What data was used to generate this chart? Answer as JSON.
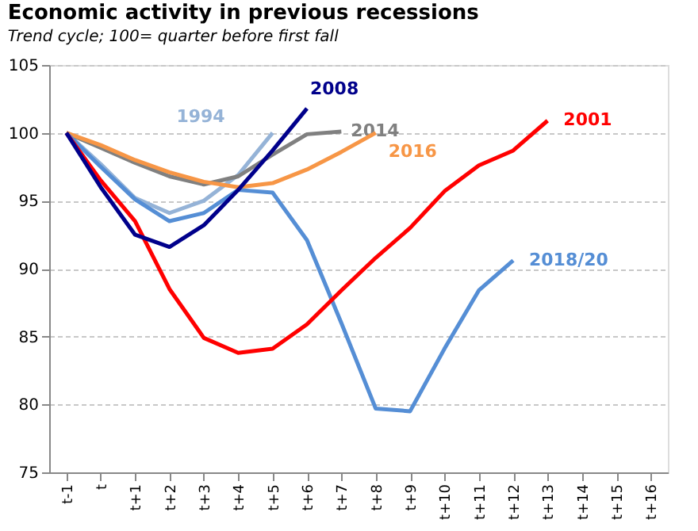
{
  "chart_data": {
    "type": "line",
    "title": "Economic  activity in previous recessions",
    "subtitle": "Trend cycle; 100= quarter before first fall",
    "categories": [
      "t-1",
      "t",
      "t+1",
      "t+2",
      "t+3",
      "t+4",
      "t+5",
      "t+6",
      "t+7",
      "t+8",
      "t+9",
      "t+10",
      "t+11",
      "t+12",
      "t+13",
      "t+14",
      "t+15",
      "t+16"
    ],
    "ylim": [
      75,
      105
    ],
    "yticks": [
      75,
      80,
      85,
      90,
      95,
      100,
      105
    ],
    "grid": "y",
    "legend": false,
    "marker": "none",
    "line_style": "solid",
    "series": [
      {
        "name": "1994",
        "color": "#95b3d7",
        "values": [
          100,
          97.7,
          95.2,
          94.1,
          95.0,
          96.9,
          100.0,
          null,
          null,
          null,
          null,
          null,
          null,
          null,
          null,
          null,
          null,
          null
        ]
      },
      {
        "name": "2014",
        "color": "#808080",
        "values": [
          100,
          98.9,
          97.8,
          96.8,
          96.2,
          96.8,
          98.4,
          99.9,
          100.1,
          null,
          null,
          null,
          null,
          null,
          null,
          null,
          null,
          null
        ]
      },
      {
        "name": "2016",
        "color": "#f79646",
        "values": [
          100,
          99.1,
          98.0,
          97.1,
          96.4,
          96.0,
          96.3,
          97.3,
          98.6,
          100.0,
          null,
          null,
          null,
          null,
          null,
          null,
          null,
          null
        ]
      },
      {
        "name": "2018/20",
        "color": "#558ed5",
        "values": [
          100,
          97.5,
          95.1,
          93.5,
          94.1,
          95.8,
          95.6,
          92.1,
          86.0,
          79.7,
          79.5,
          84.1,
          88.4,
          90.6,
          null,
          null,
          null,
          null
        ]
      },
      {
        "name": "2001",
        "color": "#ff0000",
        "values": [
          100,
          96.5,
          93.5,
          88.5,
          84.9,
          83.8,
          84.1,
          85.9,
          88.4,
          90.8,
          93.0,
          95.7,
          97.6,
          98.7,
          100.9,
          null,
          null,
          null
        ]
      },
      {
        "name": "2008",
        "color": "#00008b",
        "values": [
          100,
          96.0,
          92.5,
          91.6,
          93.2,
          95.8,
          98.7,
          101.8,
          null,
          null,
          null,
          null,
          null,
          null,
          null,
          null,
          null,
          null
        ]
      }
    ]
  }
}
